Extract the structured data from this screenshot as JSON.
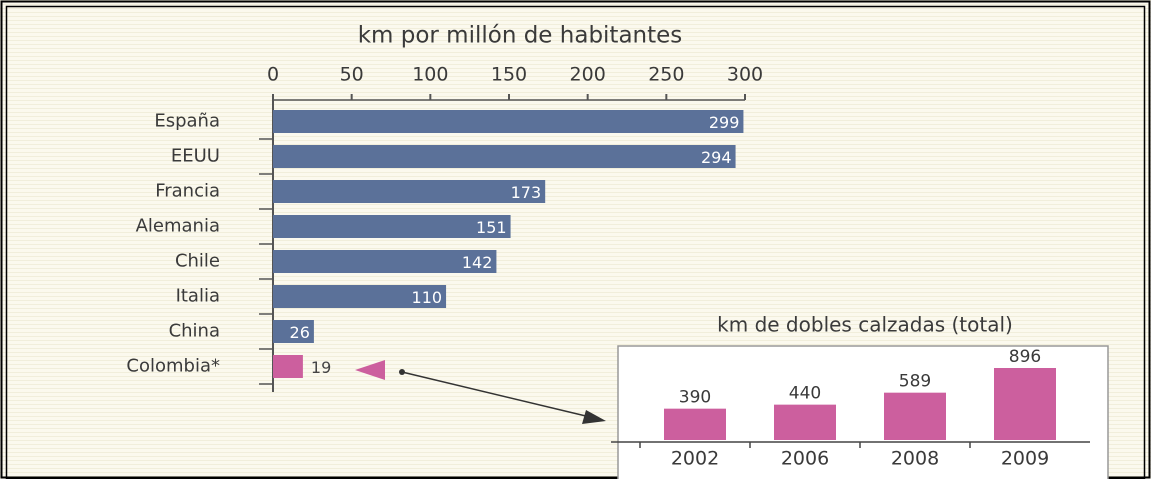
{
  "chart_data": [
    {
      "type": "hbar",
      "title": "km por millón de habitantes",
      "categories": [
        "España",
        "EEUU",
        "Francia",
        "Alemania",
        "Chile",
        "Italia",
        "China",
        "Colombia*"
      ],
      "values": [
        299,
        294,
        173,
        151,
        142,
        110,
        26,
        19
      ],
      "colors": [
        "#5b7199",
        "#5b7199",
        "#5b7199",
        "#5b7199",
        "#5b7199",
        "#5b7199",
        "#5b7199",
        "#cc5f9e"
      ],
      "xlim": [
        0,
        300
      ],
      "xticks": [
        0,
        50,
        100,
        150,
        200,
        250,
        300
      ]
    },
    {
      "type": "bar",
      "title": "km de dobles calzadas (total)",
      "categories": [
        "2002",
        "2006",
        "2008",
        "2009"
      ],
      "values": [
        390,
        440,
        589,
        896
      ],
      "color": "#cc5f9e"
    }
  ]
}
